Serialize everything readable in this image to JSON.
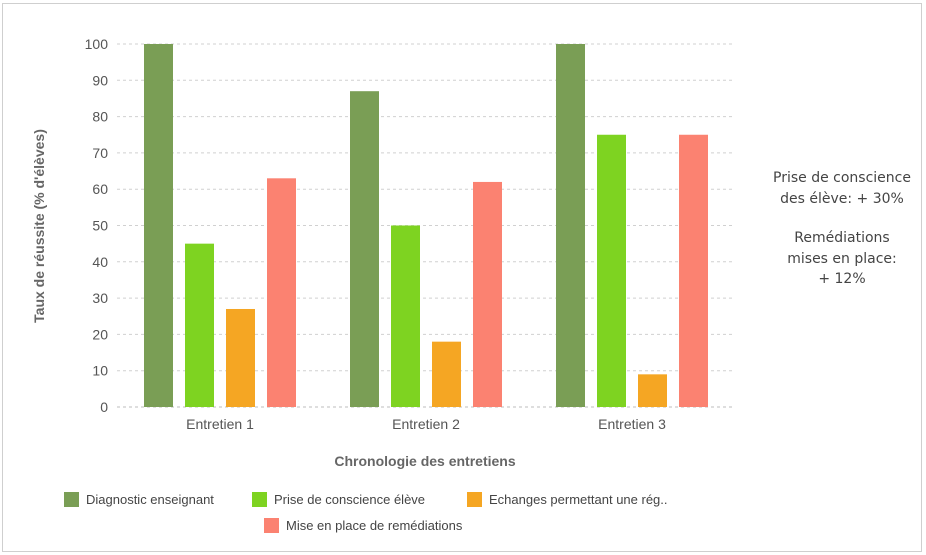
{
  "chart_data": {
    "type": "bar",
    "categories": [
      "Entretien 1",
      "Entretien 2",
      "Entretien 3"
    ],
    "series": [
      {
        "name": "Diagnostic enseignant",
        "color": "#7a9e55",
        "values": [
          100,
          87,
          100
        ]
      },
      {
        "name": "Prise de conscience élève",
        "color": "#7ed321",
        "values": [
          45,
          50,
          75
        ]
      },
      {
        "name": "Echanges permettant une rég..",
        "color": "#f5a623",
        "values": [
          27,
          18,
          9
        ]
      },
      {
        "name": "Mise en place de remédiations",
        "color": "#fb8271",
        "values": [
          63,
          62,
          75
        ]
      }
    ],
    "title": "",
    "xlabel": "Chronologie des entretiens",
    "ylabel": "Taux de réussite (% d'élèves)",
    "ylim": [
      0,
      100
    ],
    "yticks": [
      0,
      10,
      20,
      30,
      40,
      50,
      60,
      70,
      80,
      90,
      100
    ],
    "grid": true,
    "legend_position": "bottom"
  },
  "annotation": {
    "line1": "Prise de conscience",
    "line2": "des élève: + 30%",
    "line3": "Remédiations",
    "line4": "mises en place:",
    "line5": "+ 12%"
  }
}
